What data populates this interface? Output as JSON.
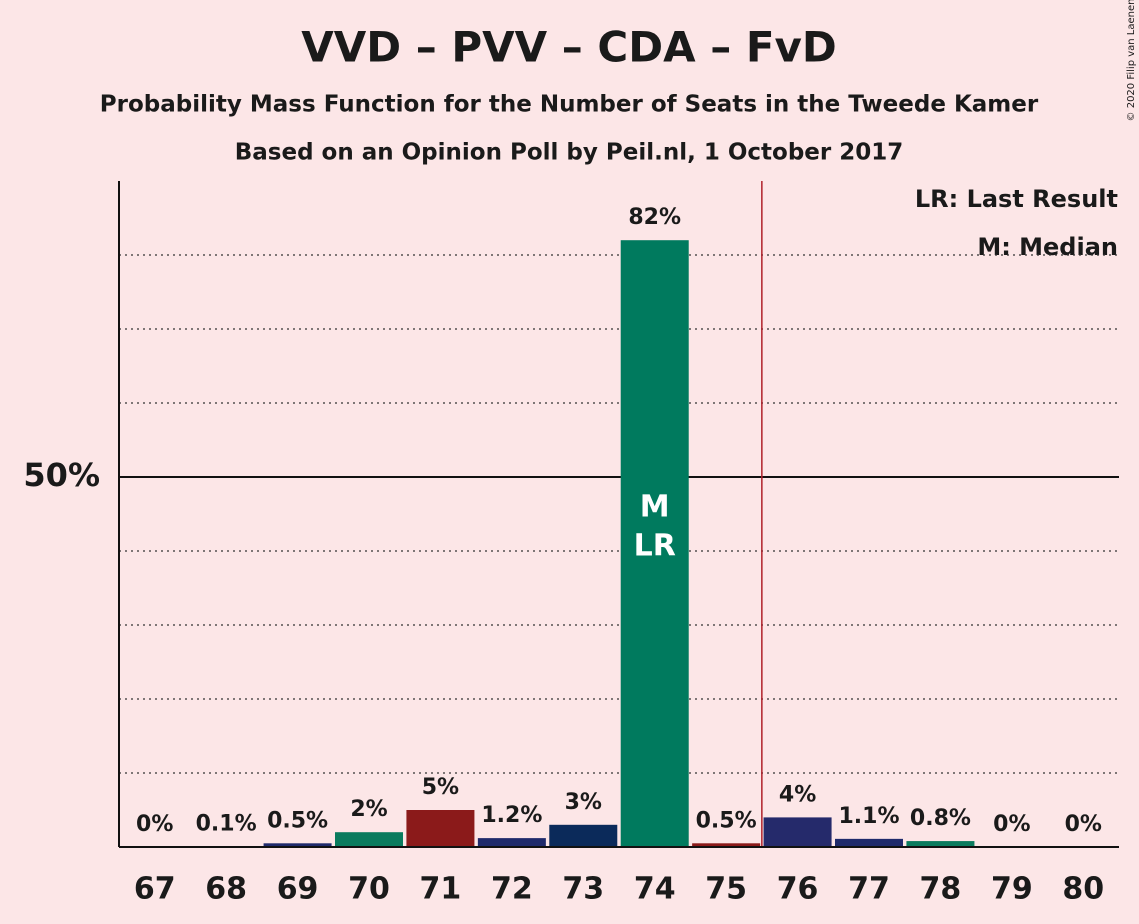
{
  "chart_data": {
    "type": "bar",
    "title": "VVD – PVV – CDA – FvD",
    "subtitle": "Probability Mass Function for the Number of Seats in the Tweede Kamer",
    "subtitle2": "Based on an Opinion Poll by Peil.nl, 1 October 2017",
    "copyright": "© 2020 Filip van Laenen",
    "categories": [
      "67",
      "68",
      "69",
      "70",
      "71",
      "72",
      "73",
      "74",
      "75",
      "76",
      "77",
      "78",
      "79",
      "80"
    ],
    "values": [
      0,
      0.1,
      0.5,
      2,
      5,
      1.2,
      3,
      82,
      0.5,
      4,
      1.1,
      0.8,
      0,
      0
    ],
    "value_labels": [
      "0%",
      "0.1%",
      "0.5%",
      "2%",
      "5%",
      "1.2%",
      "3%",
      "82%",
      "0.5%",
      "4%",
      "1.1%",
      "0.8%",
      "0%",
      "0%"
    ],
    "colors": [
      "#1f2a6b",
      "#1f2a6b",
      "#1f2a6b",
      "#0a7b5e",
      "#8b1a1a",
      "#1f2a6b",
      "#0b2a5a",
      "#007a5e",
      "#8b1a1a",
      "#252a6b",
      "#1f2a6b",
      "#0a7b5e",
      "#1f2a6b",
      "#1f2a6b"
    ],
    "ylim": [
      0,
      90
    ],
    "yticks": [
      {
        "value": 50,
        "label": "50%"
      }
    ],
    "minor_yticks": [
      10,
      20,
      30,
      40,
      60,
      70,
      80
    ],
    "majority_line": 75.5,
    "median": 74,
    "median_label": "M",
    "last_result": 74,
    "last_result_label": "LR",
    "legend": [
      "LR: Last Result",
      "M: Median"
    ]
  }
}
